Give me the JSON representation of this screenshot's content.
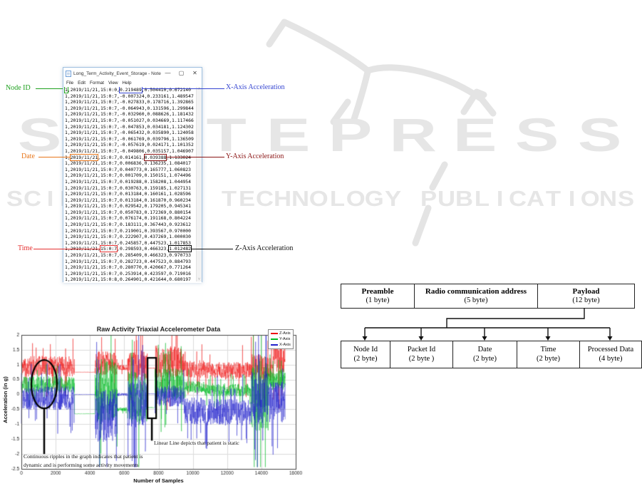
{
  "watermark": {
    "line1": "SCITEPRESS",
    "line2": "SCIENCE AND TECHNOLOGY PUBLICATIONS",
    "color": "#e6e6e6",
    "logo": "open-book-logo"
  },
  "notepad": {
    "title": "Long_Term_Activity_Event_Storage - Notepad",
    "window_controls": {
      "minimize": "—",
      "maximize": "▢",
      "close": "✕"
    },
    "menu": [
      "File",
      "Edit",
      "Format",
      "View",
      "Help"
    ],
    "scroll_up_glyph": "˄",
    "scroll_down_glyph": "˅",
    "lines": [
      "1,2019/11/21,15:0:0,0.219489,0.504410,0.672140",
      "1,2019/11/21,15:0:7,-0.007324,0.233161,1.489547",
      "1,2019/11/21,15:0:7,-0.027833,0.178716,1.392865",
      "1,2019/11/21,15:0:7,-0.064943,0.131596,1.299844",
      "1,2019/11/21,15:0:7,-0.032960,0.088626,1.181432",
      "1,2019/11/21,15:0:7,-0.051027,0.034669,1.117466",
      "1,2019/11/21,15:0:7,-0.047853,0.034181,1.124302",
      "1,2019/11/21,15:0:7,-0.065432,0.035890,1.124058",
      "1,2019/11/21,15:0:7,-0.061769,0.039796,1.136509",
      "1,2019/11/21,15:0:7,-0.057619,0.024171,1.101352",
      "1,2019/11/21,15:0:7,-0.049806,0.035157,1.046907",
      "1,2019/11/21,15:0:7,0.014161,0.039388,1.133024",
      "1,2019/11/21,15:0:7,0.006836,0.136235,1.084017",
      "1,2019/11/21,15:0:7,0.040773,0.165777,1.060823",
      "1,2019/11/21,15:0:7,0.001709,0.150151,1.074496",
      "1,2019/11/21,15:0:7,0.019288,0.158208,1.044954",
      "1,2019/11/21,15:0:7,0.030763,0.159185,1.027131",
      "1,2019/11/21,15:0:7,0.013184,0.160161,1.028596",
      "1,2019/11/21,15:0:7,0.013184,0.161870,0.960234",
      "1,2019/11/21,15:0:7,0.029542,0.179205,0.945341",
      "1,2019/11/21,15:0:7,0.050783,0.172369,0.880154",
      "1,2019/11/21,15:0:7,0.076174,0.191168,0.804224",
      "1,2019/11/21,15:0:7,0.183111,0.367443,0.923612",
      "1,2019/11/21,15:0:7,0.219001,0.393567,0.970000",
      "1,2019/11/21,15:0:7,0.222907,0.437269,1.000030",
      "1,2019/11/21,15:0:7,0.245857,0.447523,1.017853",
      "1,2019/11/21,15:0:7,0.298593,0.466323,1.012482",
      "1,2019/11/21,15:0:7,0.285409,0.466323,0.970733",
      "1,2019/11/21,15:0:7,0.282723,0.447523,0.884793",
      "1,2019/11/21,15:0:7,0.280770,0.420667,0.771264",
      "1,2019/11/21,15:0:7,0.253914,0.423597,0.719016",
      "1,2019/11/21,15:0:8,0.264901,0.421644,0.680197"
    ],
    "highlights": [
      {
        "line": 0,
        "start": 0,
        "length": 1,
        "color": "#1fa11f",
        "field": "node-id"
      },
      {
        "line": 0,
        "start": 20,
        "length": 8,
        "color": "#3545d1",
        "field": "x-axis-acceleration"
      },
      {
        "line": 11,
        "start": 2,
        "length": 10,
        "color": "#e8761a",
        "field": "date"
      },
      {
        "line": 11,
        "start": 29,
        "length": 8,
        "color": "#8b1515",
        "field": "y-axis-acceleration"
      },
      {
        "line": 26,
        "start": 13,
        "length": 6,
        "color": "#e53030",
        "field": "time"
      },
      {
        "line": 26,
        "start": 38,
        "length": 8,
        "color": "#000000",
        "field": "z-axis-acceleration"
      }
    ]
  },
  "callouts": [
    {
      "id": "node-id",
      "label": "Node ID",
      "color": "#1fa11f"
    },
    {
      "id": "x-axis",
      "label": "X-Axis Acceleration",
      "color": "#3545d1"
    },
    {
      "id": "date",
      "label": "Date",
      "color": "#e8761a"
    },
    {
      "id": "y-axis",
      "label": "Y-Axis Acceleration",
      "color": "#8b1515"
    },
    {
      "id": "time",
      "label": "Time",
      "color": "#e53030"
    },
    {
      "id": "z-axis",
      "label": "Z-Axis Acceleration",
      "color": "#111111"
    }
  ],
  "packet_diagram": {
    "top_row": [
      {
        "title": "Preamble",
        "subtitle": "(1 byte)"
      },
      {
        "title": "Radio communication address",
        "subtitle": "(5 byte)"
      },
      {
        "title": "Payload",
        "subtitle": "(12 byte)"
      }
    ],
    "bottom_row": [
      {
        "title": "Node Id",
        "subtitle": "(2 byte)"
      },
      {
        "title": "Packet Id",
        "subtitle": "(2 byte )"
      },
      {
        "title": "Date",
        "subtitle": "(2 byte)"
      },
      {
        "title": "Time",
        "subtitle": "(2 byte)"
      },
      {
        "title": "Processed Data",
        "subtitle": "(4 byte)"
      }
    ]
  },
  "chart_data": {
    "type": "line",
    "title": "Raw Activity Triaxial Accelerometer Data",
    "xlabel": "Number of Samples",
    "ylabel": "Acceleration (in g)",
    "xlim": [
      0,
      16000
    ],
    "ylim": [
      -2.5,
      2
    ],
    "xticks": [
      0,
      2000,
      4000,
      6000,
      8000,
      10000,
      12000,
      14000,
      16000
    ],
    "yticks": [
      2,
      1.5,
      1,
      0.5,
      0,
      -0.5,
      -1,
      -1.5,
      -2,
      -2.5
    ],
    "grid": true,
    "legend_position": "top-right",
    "series": [
      {
        "name": "Z-Axis",
        "color": "#ee1111",
        "segments": [
          [
            0,
            3100,
            0.95,
            0.35
          ],
          [
            3100,
            4300,
            0.75,
            0.008
          ],
          [
            4300,
            5600,
            1.05,
            0.4
          ],
          [
            5600,
            6200,
            0.9,
            0.1
          ],
          [
            6200,
            7350,
            0.95,
            0.5
          ],
          [
            7350,
            7800,
            0.88,
            0.01
          ],
          [
            7800,
            9500,
            1.1,
            0.55
          ],
          [
            9500,
            10700,
            0.85,
            0.3
          ],
          [
            10700,
            13400,
            0.8,
            0.3
          ],
          [
            13400,
            14700,
            0.9,
            0.45
          ],
          [
            14700,
            15400,
            1.3,
            0.6
          ]
        ]
      },
      {
        "name": "Y-Axis",
        "color": "#00bb22",
        "segments": [
          [
            0,
            3100,
            0.33,
            0.28
          ],
          [
            3100,
            4300,
            -0.65,
            0.008
          ],
          [
            4300,
            5600,
            0.1,
            1.1
          ],
          [
            5600,
            6200,
            -0.5,
            0.07
          ],
          [
            6200,
            7350,
            -0.1,
            0.9
          ],
          [
            7350,
            7800,
            -0.44,
            0.01
          ],
          [
            7800,
            9500,
            0.35,
            0.55
          ],
          [
            9500,
            10700,
            0.25,
            0.2
          ],
          [
            10700,
            13400,
            0.15,
            0.22
          ],
          [
            13400,
            14400,
            0.0,
            1.3
          ],
          [
            14400,
            15400,
            0.5,
            0.35
          ]
        ]
      },
      {
        "name": "X-Axis",
        "color": "#2222cc",
        "segments": [
          [
            0,
            3100,
            -0.12,
            0.4
          ],
          [
            3100,
            4300,
            0.0,
            0.008
          ],
          [
            4300,
            5600,
            -0.7,
            0.9
          ],
          [
            5600,
            6200,
            0.0,
            0.05
          ],
          [
            6200,
            7350,
            -0.3,
            0.8
          ],
          [
            7350,
            7800,
            0.02,
            0.01
          ],
          [
            7800,
            9500,
            -0.05,
            0.35
          ],
          [
            9500,
            10700,
            -0.55,
            0.45
          ],
          [
            10700,
            13400,
            -0.6,
            0.45
          ],
          [
            13400,
            14400,
            -0.1,
            0.9
          ],
          [
            14400,
            15400,
            -0.25,
            0.7
          ]
        ]
      }
    ],
    "annotations": [
      {
        "shape": "ellipse",
        "x0": 580,
        "x1": 2080,
        "y0": -0.47,
        "y1": 1.16,
        "leader_x": 1330,
        "leader_y1": -2.0,
        "text_lines": [
          "Continuous ripples in the graph indicates that patient is",
          "dynamic and is performing some activity movements"
        ]
      },
      {
        "shape": "rect",
        "x0": 7360,
        "x1": 7860,
        "y0": -0.8,
        "y1": 1.23,
        "leader_x": 7610,
        "leader_y1": -1.55,
        "text_lines": [
          "Linear Line depicts that patient is static"
        ]
      }
    ]
  }
}
